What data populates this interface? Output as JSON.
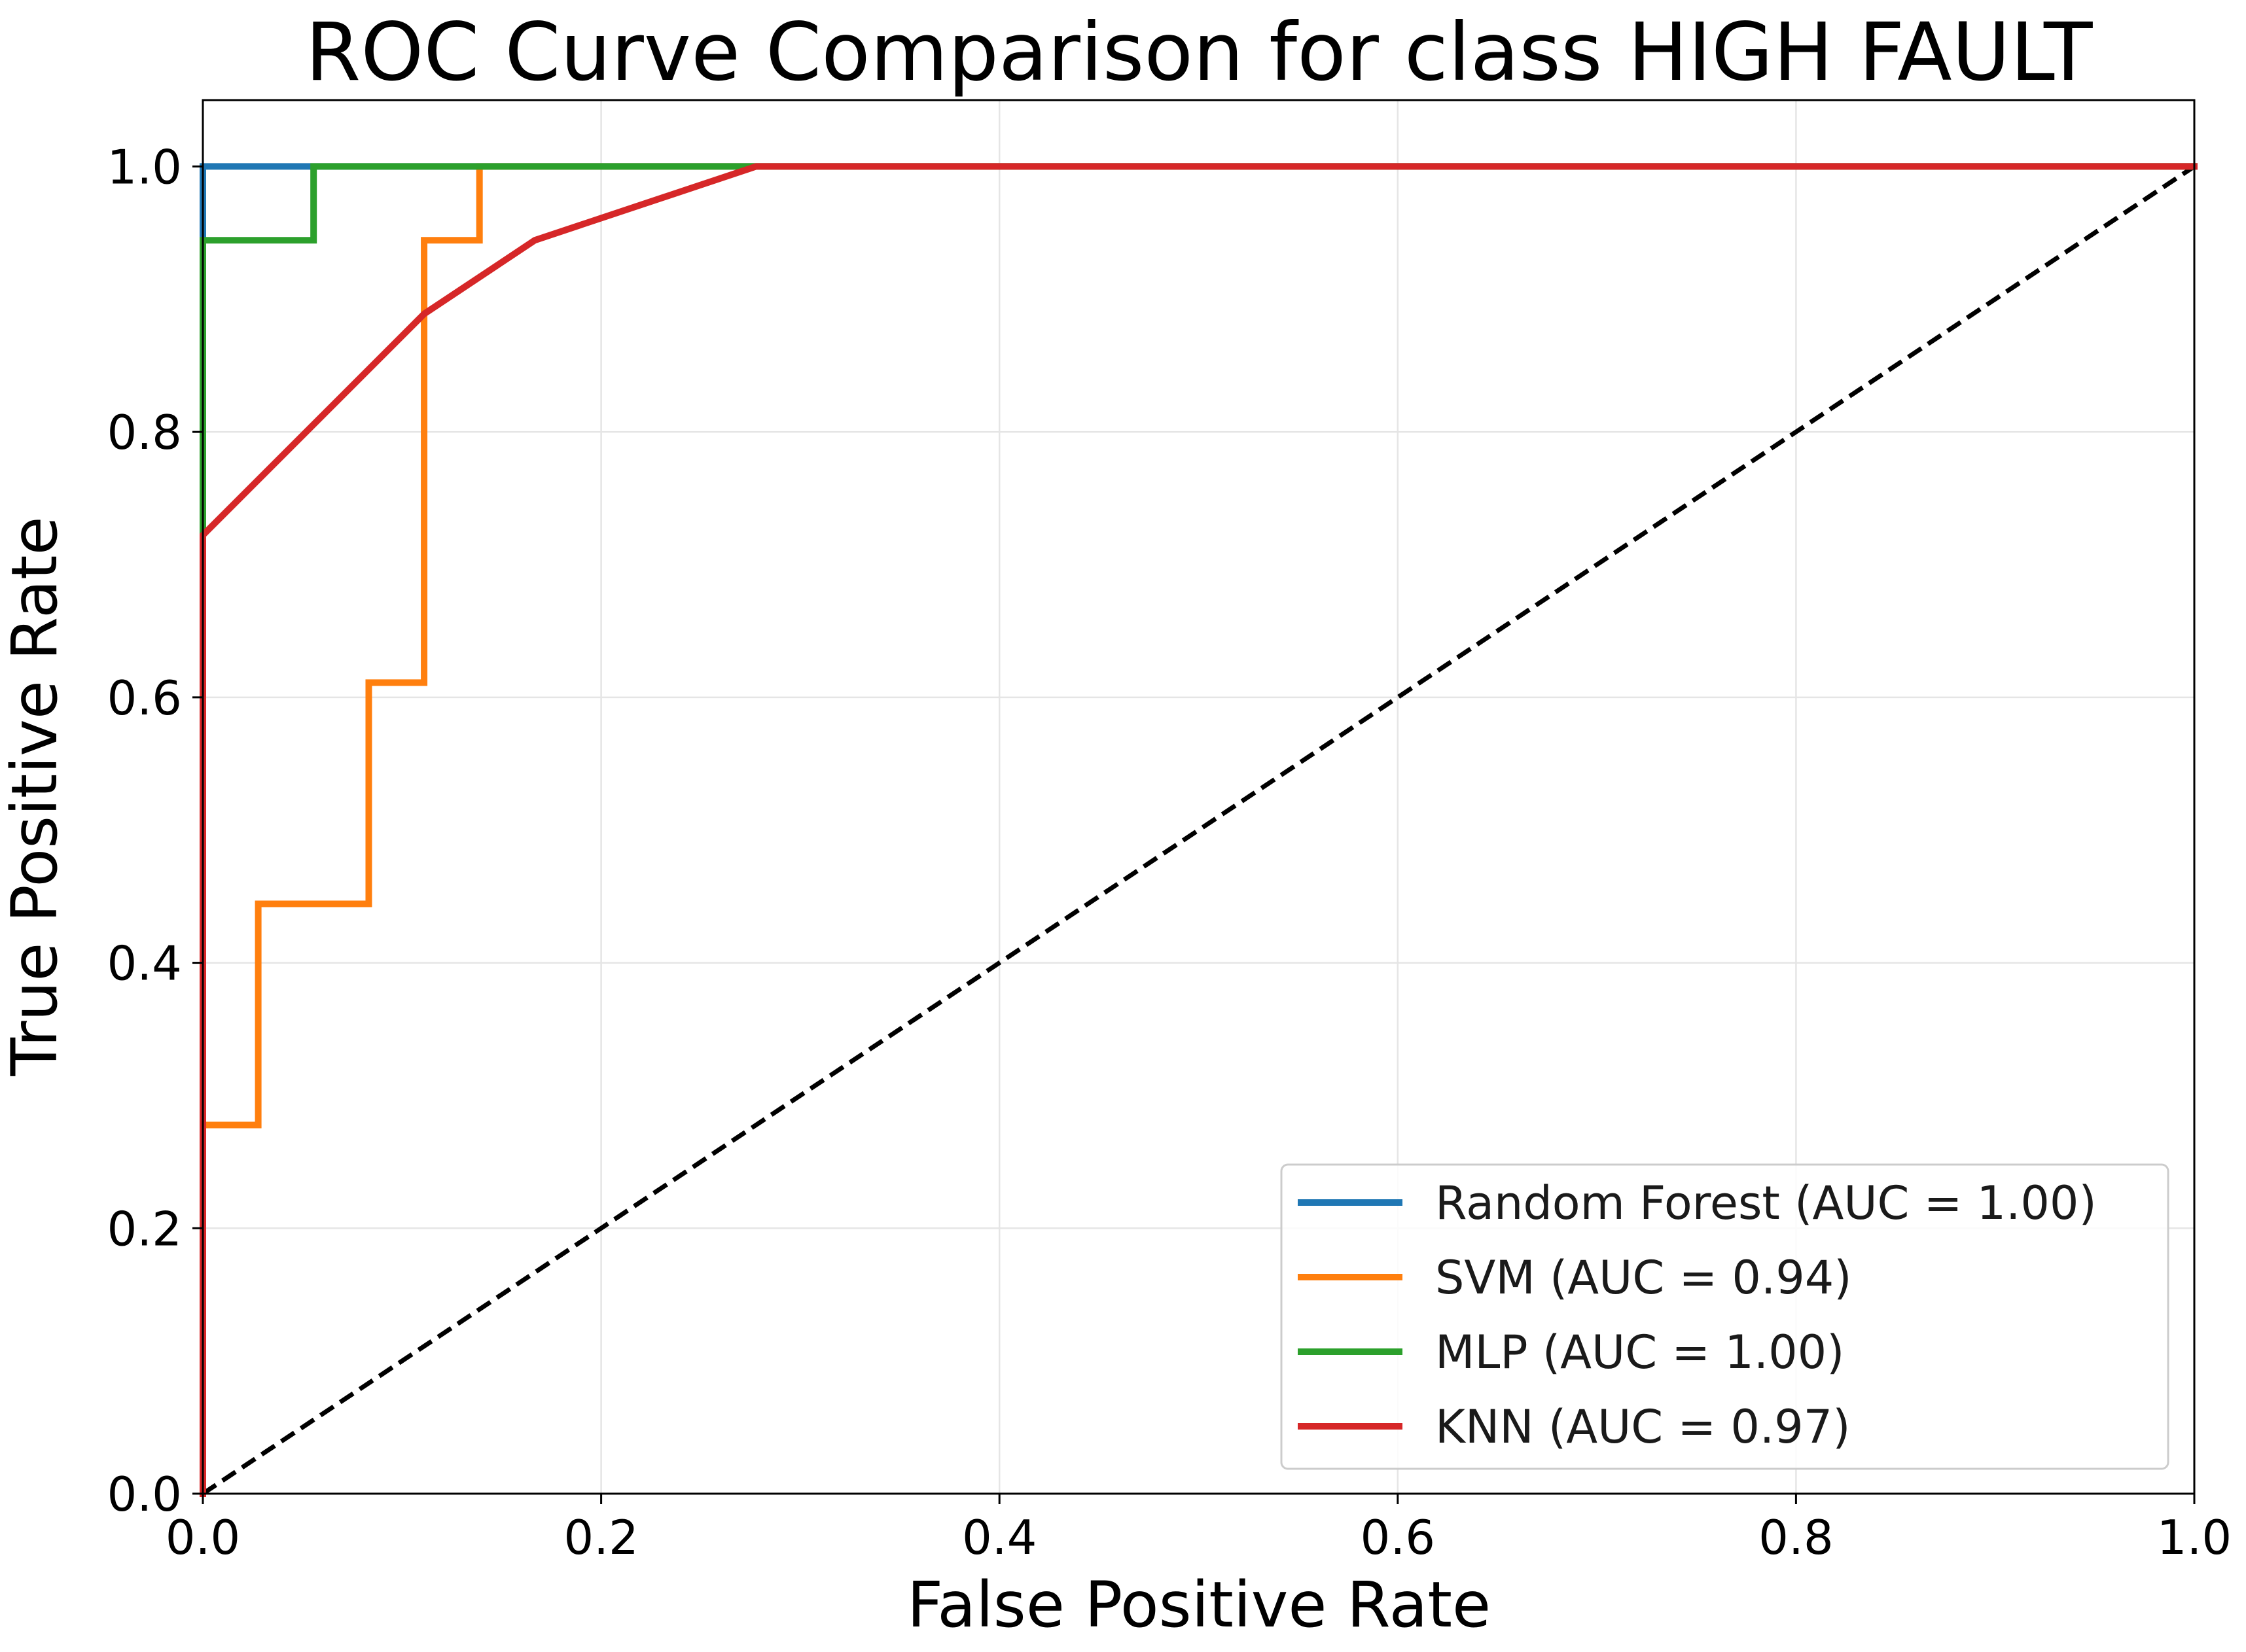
{
  "chart_data": {
    "type": "line",
    "title": "ROC Curve Comparison for class HIGH FAULT",
    "xlabel": "False Positive Rate",
    "ylabel": "True Positive Rate",
    "xlim": [
      0.0,
      1.0
    ],
    "ylim": [
      0.0,
      1.05
    ],
    "xticks": [
      0.0,
      0.2,
      0.4,
      0.6,
      0.8,
      1.0
    ],
    "xtick_labels": [
      "0.0",
      "0.2",
      "0.4",
      "0.6",
      "0.8",
      "1.0"
    ],
    "yticks": [
      0.0,
      0.2,
      0.4,
      0.6,
      0.8,
      1.0
    ],
    "ytick_labels": [
      "0.0",
      "0.2",
      "0.4",
      "0.6",
      "0.8",
      "1.0"
    ],
    "grid": true,
    "legend_position": "lower-right",
    "series": [
      {
        "name": "Random Forest (AUC = 1.00)",
        "color": "#1f77b4",
        "x": [
          0.0,
          0.0,
          1.0
        ],
        "y": [
          0.0,
          1.0,
          1.0
        ]
      },
      {
        "name": "SVM (AUC = 0.94)",
        "color": "#ff7f0e",
        "x": [
          0.0,
          0.0,
          0.0278,
          0.0278,
          0.0833,
          0.0833,
          0.1111,
          0.1111,
          0.1389,
          0.1389,
          1.0
        ],
        "y": [
          0.0,
          0.2778,
          0.2778,
          0.4444,
          0.4444,
          0.6111,
          0.6111,
          0.9444,
          0.9444,
          1.0,
          1.0
        ]
      },
      {
        "name": "MLP (AUC = 1.00)",
        "color": "#2ca02c",
        "x": [
          0.0,
          0.0,
          0.0556,
          0.0556,
          1.0
        ],
        "y": [
          0.0,
          0.9444,
          0.9444,
          1.0,
          1.0
        ]
      },
      {
        "name": "KNN (AUC = 0.97)",
        "color": "#d62728",
        "x": [
          0.0,
          0.0,
          0.1111,
          0.1667,
          0.2778,
          1.0
        ],
        "y": [
          0.0,
          0.7222,
          0.8889,
          0.9444,
          1.0,
          1.0
        ]
      }
    ],
    "reference_line": {
      "color": "#000000",
      "style": "dashed",
      "x": [
        0.0,
        1.0
      ],
      "y": [
        0.0,
        1.0
      ]
    }
  }
}
